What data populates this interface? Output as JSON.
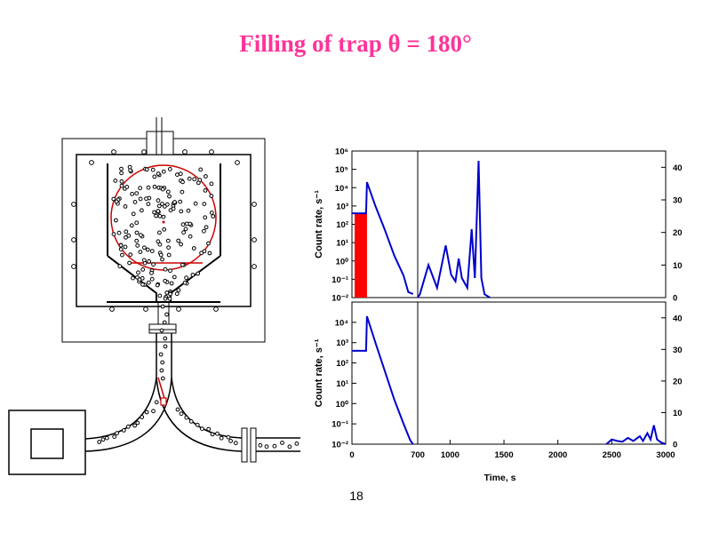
{
  "slide": {
    "title": "Filling of trap  θ = 180°",
    "title_color": "#ff3399",
    "page_number": "18"
  },
  "diagram": {
    "particle_color": "#000000",
    "trap_outline_color": "#cc0000",
    "outline_color": "#000000"
  },
  "chart_data": [
    {
      "type": "line",
      "ylabel": "Count rate, s⁻¹",
      "y_scale": "log",
      "y_ticks_left": [
        "10⁻²",
        "10⁻¹",
        "10⁰",
        "10¹",
        "10²",
        "10³",
        "10⁴",
        "10⁵"
      ],
      "y_ticks_right": [
        "0",
        "10",
        "20",
        "30",
        "40"
      ],
      "x_segments": [
        [
          0,
          700
        ],
        [
          700,
          3000
        ]
      ],
      "series_color": "#0000cc",
      "filling_marker_color": "#ff0000",
      "filling_interval": [
        0,
        160
      ],
      "segment_1_log_points": [
        [
          0,
          2.6
        ],
        [
          150,
          2.6
        ],
        [
          160,
          4.3
        ],
        [
          250,
          3.0
        ],
        [
          350,
          1.7
        ],
        [
          450,
          0.3
        ],
        [
          550,
          -0.8
        ],
        [
          600,
          -1.7
        ],
        [
          650,
          -1.8
        ]
      ],
      "segment_2_linear_points": [
        [
          700,
          0
        ],
        [
          720,
          1
        ],
        [
          800,
          10
        ],
        [
          880,
          3
        ],
        [
          960,
          16
        ],
        [
          1010,
          7
        ],
        [
          1050,
          5
        ],
        [
          1080,
          12
        ],
        [
          1110,
          6
        ],
        [
          1160,
          3
        ],
        [
          1200,
          21
        ],
        [
          1230,
          6
        ],
        [
          1265,
          42
        ],
        [
          1290,
          6
        ],
        [
          1320,
          1
        ],
        [
          1370,
          0
        ]
      ]
    },
    {
      "type": "line",
      "xlabel": "Time, s",
      "ylabel": "Count rate, s⁻¹",
      "y_scale": "log",
      "y_ticks_left": [
        "10⁻²",
        "10⁻¹",
        "10⁰",
        "10¹",
        "10²",
        "10³",
        "10⁴"
      ],
      "y_ticks_right": [
        "0",
        "10",
        "20",
        "30",
        "40"
      ],
      "x_ticks": [
        "0",
        "700",
        "1000",
        "1500",
        "2000",
        "2500",
        "3000"
      ],
      "series_color": "#0000cc",
      "segment_1_log_points": [
        [
          0,
          2.6
        ],
        [
          150,
          2.6
        ],
        [
          160,
          4.3
        ],
        [
          250,
          3.0
        ],
        [
          350,
          1.6
        ],
        [
          450,
          0.2
        ],
        [
          550,
          -1.0
        ],
        [
          620,
          -1.8
        ],
        [
          650,
          -2.0
        ]
      ],
      "segment_2_linear_points": [
        [
          2450,
          0
        ],
        [
          2500,
          1.5
        ],
        [
          2550,
          1
        ],
        [
          2600,
          0.8
        ],
        [
          2650,
          2
        ],
        [
          2700,
          1
        ],
        [
          2760,
          2.5
        ],
        [
          2790,
          1
        ],
        [
          2830,
          3.5
        ],
        [
          2860,
          1.5
        ],
        [
          2890,
          6
        ],
        [
          2920,
          1.5
        ],
        [
          2960,
          0.5
        ],
        [
          3000,
          0
        ]
      ]
    }
  ]
}
